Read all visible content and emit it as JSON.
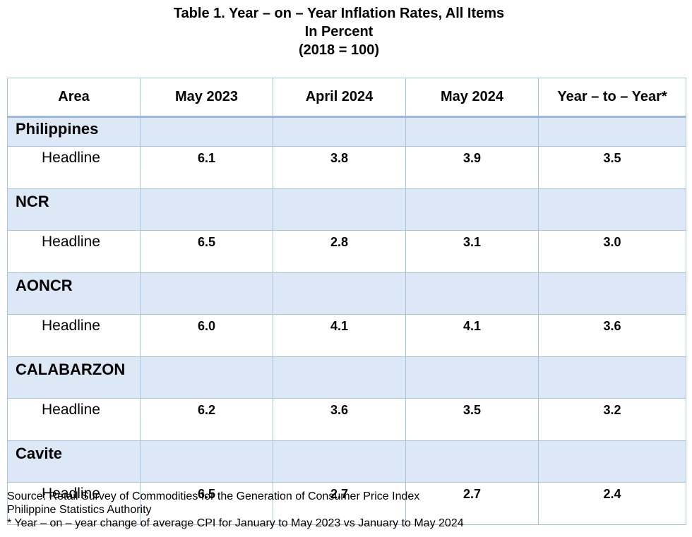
{
  "title": {
    "line1": "Table 1. Year – on – Year Inflation Rates, All Items",
    "line2": "In Percent",
    "line3": "(2018 = 100)"
  },
  "table": {
    "headers": [
      "Area",
      "May 2023",
      "April 2024",
      "May 2024",
      "Year – to – Year*"
    ],
    "regions": [
      {
        "name": "Philippines",
        "label": "Headline",
        "values": [
          "6.1",
          "3.8",
          "3.9",
          "3.5"
        ]
      },
      {
        "name": "NCR",
        "label": "Headline",
        "values": [
          "6.5",
          "2.8",
          "3.1",
          "3.0"
        ]
      },
      {
        "name": "AONCR",
        "label": "Headline",
        "values": [
          "6.0",
          "4.1",
          "4.1",
          "3.6"
        ]
      },
      {
        "name": "CALABARZON",
        "label": "Headline",
        "values": [
          "6.2",
          "3.6",
          "3.5",
          "3.2"
        ]
      },
      {
        "name": "Cavite",
        "label": "Headline",
        "values": [
          "6.5",
          "2.7",
          "2.7",
          "2.4"
        ]
      }
    ]
  },
  "notes": {
    "source": "Source: Retail Survey of Commodities for the Generation of Consumer Price Index",
    "authority": "Philippine Statistics Authority",
    "footnote": "* Year – on – year change of average CPI for January to May 2023 vs January to May 2024"
  }
}
